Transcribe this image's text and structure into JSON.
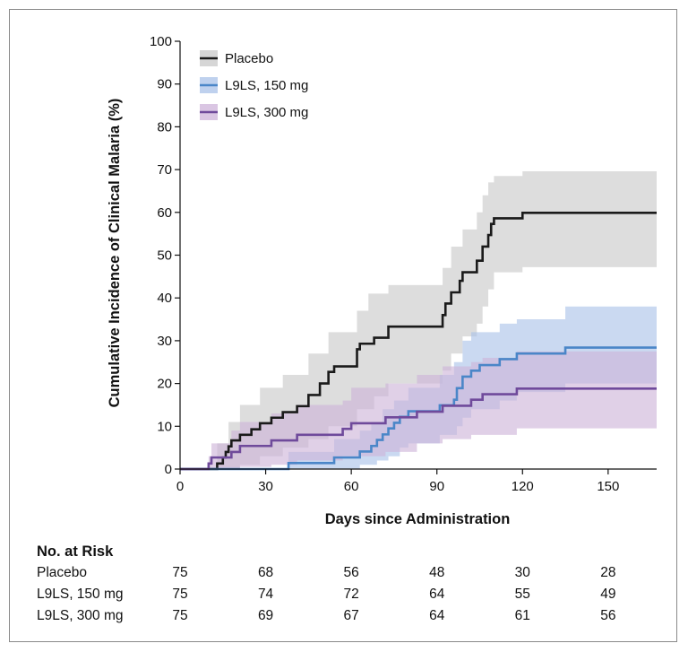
{
  "chart_data": {
    "type": "line",
    "step": true,
    "xlabel": "Days since Administration",
    "ylabel": "Cumulative Incidence of Clinical Malaria (%)",
    "xlim": [
      0,
      167
    ],
    "ylim": [
      0,
      100
    ],
    "x_ticks": [
      0,
      30,
      60,
      90,
      120,
      150
    ],
    "y_ticks": [
      0,
      10,
      20,
      30,
      40,
      50,
      60,
      70,
      80,
      90,
      100
    ],
    "grid": false,
    "legend_position": "top-left",
    "series": [
      {
        "name": "Placebo",
        "line_color": "#1a1a1a",
        "band_color": "#c8c8c8",
        "points": [
          [
            0,
            0
          ],
          [
            13,
            0
          ],
          [
            13,
            1.3
          ],
          [
            15,
            1.3
          ],
          [
            15,
            2.7
          ],
          [
            16,
            2.7
          ],
          [
            16,
            4.0
          ],
          [
            17,
            4.0
          ],
          [
            17,
            5.3
          ],
          [
            18,
            5.3
          ],
          [
            18,
            6.7
          ],
          [
            21,
            6.7
          ],
          [
            21,
            8.0
          ],
          [
            25,
            8.0
          ],
          [
            25,
            9.3
          ],
          [
            28,
            9.3
          ],
          [
            28,
            10.7
          ],
          [
            32,
            10.7
          ],
          [
            32,
            12.0
          ],
          [
            36,
            12.0
          ],
          [
            36,
            13.3
          ],
          [
            41,
            13.3
          ],
          [
            41,
            14.7
          ],
          [
            45,
            14.7
          ],
          [
            45,
            17.3
          ],
          [
            49,
            17.3
          ],
          [
            49,
            20.0
          ],
          [
            52,
            20.0
          ],
          [
            52,
            22.7
          ],
          [
            54,
            22.7
          ],
          [
            54,
            24.0
          ],
          [
            62,
            24.0
          ],
          [
            62,
            28.0
          ],
          [
            63,
            28.0
          ],
          [
            63,
            29.3
          ],
          [
            68,
            29.3
          ],
          [
            68,
            30.7
          ],
          [
            73,
            30.7
          ],
          [
            73,
            33.3
          ],
          [
            92,
            33.3
          ],
          [
            92,
            36.0
          ],
          [
            93,
            36.0
          ],
          [
            93,
            38.7
          ],
          [
            95,
            38.7
          ],
          [
            95,
            41.3
          ],
          [
            98,
            41.3
          ],
          [
            98,
            44.0
          ],
          [
            99,
            44.0
          ],
          [
            99,
            46.0
          ],
          [
            104,
            46.0
          ],
          [
            104,
            48.7
          ],
          [
            106,
            48.7
          ],
          [
            106,
            52.0
          ],
          [
            108,
            52.0
          ],
          [
            108,
            54.7
          ],
          [
            109,
            54.7
          ],
          [
            109,
            57.3
          ],
          [
            110,
            57.3
          ],
          [
            110,
            58.6
          ],
          [
            120,
            58.6
          ],
          [
            120,
            59.9
          ],
          [
            167,
            59.9
          ]
        ],
        "band_upper": [
          [
            0,
            0
          ],
          [
            13,
            0
          ],
          [
            13,
            6
          ],
          [
            17,
            6
          ],
          [
            17,
            11
          ],
          [
            21,
            11
          ],
          [
            21,
            15
          ],
          [
            28,
            15
          ],
          [
            28,
            19
          ],
          [
            36,
            19
          ],
          [
            36,
            22
          ],
          [
            45,
            22
          ],
          [
            45,
            27
          ],
          [
            52,
            27
          ],
          [
            52,
            32
          ],
          [
            62,
            32
          ],
          [
            62,
            37
          ],
          [
            66,
            37
          ],
          [
            66,
            41
          ],
          [
            73,
            41
          ],
          [
            73,
            43
          ],
          [
            92,
            43
          ],
          [
            92,
            47
          ],
          [
            95,
            47
          ],
          [
            95,
            52
          ],
          [
            99,
            52
          ],
          [
            99,
            56
          ],
          [
            104,
            56
          ],
          [
            104,
            60
          ],
          [
            106,
            60
          ],
          [
            106,
            64
          ],
          [
            108,
            64
          ],
          [
            108,
            67
          ],
          [
            110,
            67
          ],
          [
            110,
            68.5
          ],
          [
            120,
            68.5
          ],
          [
            120,
            69.6
          ],
          [
            167,
            69.6
          ]
        ],
        "band_lower": [
          [
            0,
            0
          ],
          [
            21,
            0
          ],
          [
            21,
            1
          ],
          [
            28,
            1
          ],
          [
            28,
            3
          ],
          [
            36,
            3
          ],
          [
            36,
            5
          ],
          [
            45,
            5
          ],
          [
            45,
            7
          ],
          [
            52,
            7
          ],
          [
            52,
            10
          ],
          [
            62,
            10
          ],
          [
            62,
            14
          ],
          [
            68,
            14
          ],
          [
            68,
            17
          ],
          [
            73,
            17
          ],
          [
            73,
            20
          ],
          [
            92,
            20
          ],
          [
            92,
            23
          ],
          [
            95,
            23
          ],
          [
            95,
            27
          ],
          [
            99,
            27
          ],
          [
            99,
            31
          ],
          [
            104,
            31
          ],
          [
            104,
            34
          ],
          [
            106,
            34
          ],
          [
            106,
            38
          ],
          [
            108,
            38
          ],
          [
            108,
            42
          ],
          [
            110,
            42
          ],
          [
            110,
            46
          ],
          [
            120,
            46
          ],
          [
            120,
            47.2
          ],
          [
            167,
            47.2
          ]
        ]
      },
      {
        "name": "L9LS, 150 mg",
        "line_color": "#4a86c8",
        "band_color": "#a9c2e8",
        "points": [
          [
            0,
            0
          ],
          [
            38,
            0
          ],
          [
            38,
            1.4
          ],
          [
            54,
            1.4
          ],
          [
            54,
            2.7
          ],
          [
            63,
            2.7
          ],
          [
            63,
            4.1
          ],
          [
            67,
            4.1
          ],
          [
            67,
            5.4
          ],
          [
            69,
            5.4
          ],
          [
            69,
            6.8
          ],
          [
            71,
            6.8
          ],
          [
            71,
            8.1
          ],
          [
            73,
            8.1
          ],
          [
            73,
            9.5
          ],
          [
            75,
            9.5
          ],
          [
            75,
            10.8
          ],
          [
            77,
            10.8
          ],
          [
            77,
            12.2
          ],
          [
            80,
            12.2
          ],
          [
            80,
            13.5
          ],
          [
            91,
            13.5
          ],
          [
            91,
            14.9
          ],
          [
            96,
            14.9
          ],
          [
            96,
            16.2
          ],
          [
            97,
            16.2
          ],
          [
            97,
            18.9
          ],
          [
            99,
            18.9
          ],
          [
            99,
            21.6
          ],
          [
            102,
            21.6
          ],
          [
            102,
            23.0
          ],
          [
            105,
            23.0
          ],
          [
            105,
            24.3
          ],
          [
            112,
            24.3
          ],
          [
            112,
            25.7
          ],
          [
            118,
            25.7
          ],
          [
            118,
            27.0
          ],
          [
            135,
            27.0
          ],
          [
            135,
            28.4
          ],
          [
            167,
            28.4
          ]
        ],
        "band_upper": [
          [
            0,
            0
          ],
          [
            38,
            0
          ],
          [
            38,
            4
          ],
          [
            54,
            4
          ],
          [
            54,
            7
          ],
          [
            63,
            7
          ],
          [
            63,
            9
          ],
          [
            67,
            9
          ],
          [
            67,
            11
          ],
          [
            71,
            11
          ],
          [
            71,
            14
          ],
          [
            75,
            14
          ],
          [
            75,
            16
          ],
          [
            80,
            16
          ],
          [
            80,
            19
          ],
          [
            91,
            19
          ],
          [
            91,
            22
          ],
          [
            96,
            22
          ],
          [
            96,
            25
          ],
          [
            99,
            25
          ],
          [
            99,
            30
          ],
          [
            102,
            30
          ],
          [
            102,
            32
          ],
          [
            112,
            32
          ],
          [
            112,
            34
          ],
          [
            118,
            34
          ],
          [
            118,
            35
          ],
          [
            135,
            35
          ],
          [
            135,
            38
          ],
          [
            167,
            38
          ]
        ],
        "band_lower": [
          [
            0,
            0
          ],
          [
            63,
            0
          ],
          [
            63,
            1
          ],
          [
            69,
            1
          ],
          [
            69,
            2
          ],
          [
            73,
            2
          ],
          [
            73,
            3
          ],
          [
            77,
            3
          ],
          [
            77,
            5
          ],
          [
            80,
            5
          ],
          [
            80,
            6
          ],
          [
            91,
            6
          ],
          [
            91,
            8
          ],
          [
            97,
            8
          ],
          [
            97,
            10
          ],
          [
            99,
            10
          ],
          [
            99,
            12
          ],
          [
            102,
            12
          ],
          [
            102,
            14
          ],
          [
            112,
            14
          ],
          [
            112,
            16
          ],
          [
            118,
            16
          ],
          [
            118,
            18
          ],
          [
            135,
            18
          ],
          [
            135,
            20
          ],
          [
            167,
            20
          ]
        ]
      },
      {
        "name": "L9LS, 300 mg",
        "line_color": "#6f4a9b",
        "band_color": "#cdb3d9",
        "points": [
          [
            0,
            0
          ],
          [
            10,
            0
          ],
          [
            10,
            1.3
          ],
          [
            11,
            1.3
          ],
          [
            11,
            2.7
          ],
          [
            18,
            2.7
          ],
          [
            18,
            4.0
          ],
          [
            21,
            4.0
          ],
          [
            21,
            5.4
          ],
          [
            32,
            5.4
          ],
          [
            32,
            6.7
          ],
          [
            41,
            6.7
          ],
          [
            41,
            8.0
          ],
          [
            57,
            8.0
          ],
          [
            57,
            9.4
          ],
          [
            60,
            9.4
          ],
          [
            60,
            10.7
          ],
          [
            72,
            10.7
          ],
          [
            72,
            12.1
          ],
          [
            83,
            12.1
          ],
          [
            83,
            13.4
          ],
          [
            92,
            13.4
          ],
          [
            92,
            14.8
          ],
          [
            102,
            14.8
          ],
          [
            102,
            16.2
          ],
          [
            106,
            16.2
          ],
          [
            106,
            17.5
          ],
          [
            118,
            17.5
          ],
          [
            118,
            18.8
          ],
          [
            167,
            18.8
          ]
        ],
        "band_upper": [
          [
            0,
            0
          ],
          [
            10,
            0
          ],
          [
            10,
            3
          ],
          [
            11,
            3
          ],
          [
            11,
            6
          ],
          [
            18,
            6
          ],
          [
            18,
            9
          ],
          [
            21,
            9
          ],
          [
            21,
            11
          ],
          [
            32,
            11
          ],
          [
            32,
            13
          ],
          [
            41,
            13
          ],
          [
            41,
            15
          ],
          [
            57,
            15
          ],
          [
            57,
            16
          ],
          [
            60,
            16
          ],
          [
            60,
            19
          ],
          [
            72,
            19
          ],
          [
            72,
            20
          ],
          [
            83,
            20
          ],
          [
            83,
            22
          ],
          [
            92,
            22
          ],
          [
            92,
            24
          ],
          [
            102,
            24
          ],
          [
            102,
            25
          ],
          [
            106,
            25
          ],
          [
            106,
            26
          ],
          [
            118,
            26
          ],
          [
            118,
            27.5
          ],
          [
            167,
            27.5
          ]
        ],
        "band_lower": [
          [
            0,
            0
          ],
          [
            21,
            0
          ],
          [
            21,
            0.5
          ],
          [
            32,
            0.5
          ],
          [
            32,
            1
          ],
          [
            41,
            1
          ],
          [
            41,
            2
          ],
          [
            57,
            2
          ],
          [
            57,
            3
          ],
          [
            72,
            3
          ],
          [
            72,
            4
          ],
          [
            83,
            4
          ],
          [
            83,
            6
          ],
          [
            92,
            6
          ],
          [
            92,
            7
          ],
          [
            102,
            7
          ],
          [
            102,
            8
          ],
          [
            118,
            8
          ],
          [
            118,
            9.5
          ],
          [
            167,
            9.5
          ]
        ]
      }
    ]
  },
  "risk_table": {
    "title": "No. at Risk",
    "columns": [
      0,
      30,
      60,
      90,
      120,
      150
    ],
    "rows": [
      {
        "label": "Placebo",
        "values": [
          "75",
          "68",
          "56",
          "48",
          "30",
          "28"
        ]
      },
      {
        "label": "L9LS, 150 mg",
        "values": [
          "75",
          "74",
          "72",
          "64",
          "55",
          "49"
        ]
      },
      {
        "label": "L9LS, 300 mg",
        "values": [
          "75",
          "69",
          "67",
          "64",
          "61",
          "56"
        ]
      }
    ]
  }
}
